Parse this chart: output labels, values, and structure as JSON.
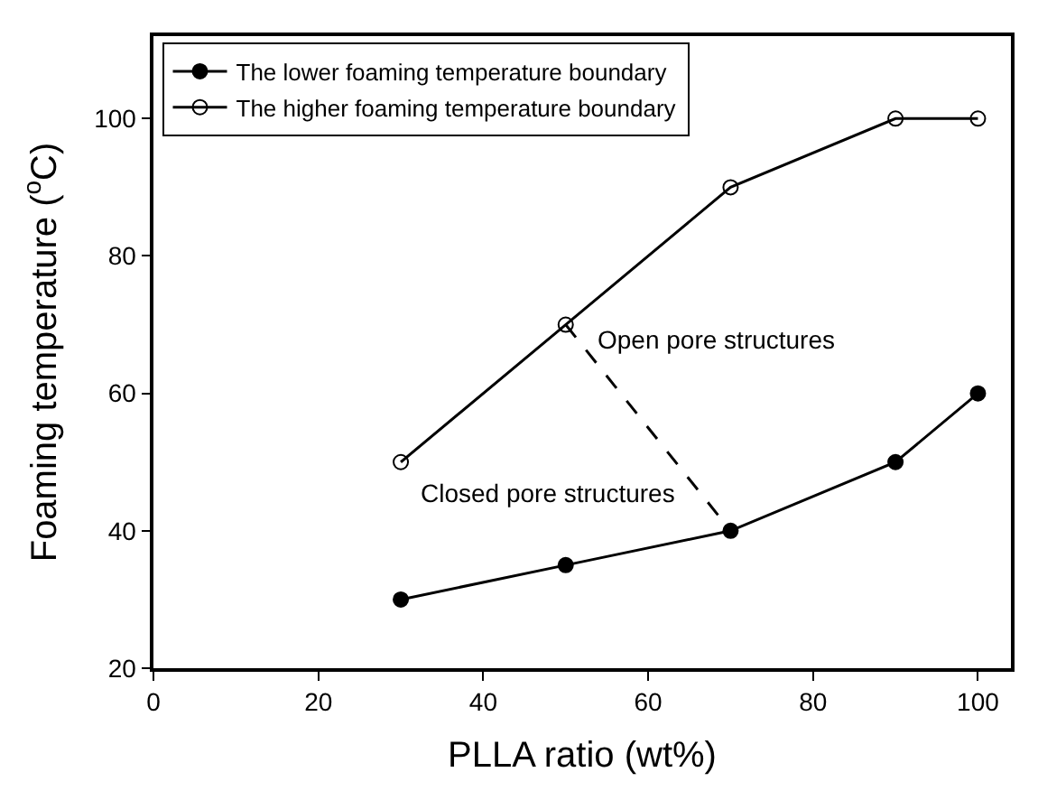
{
  "chart_data": {
    "type": "line",
    "xlabel": "PLLA ratio (wt%)",
    "ylabel": "Foaming temperature ($^{o}$C)",
    "xlim": [
      0,
      104
    ],
    "xticks": [
      0,
      20,
      40,
      60,
      80,
      100
    ],
    "ylim": [
      20,
      112
    ],
    "yticks": [
      20,
      40,
      60,
      80,
      100
    ],
    "legend": "top left",
    "line_style": "solid",
    "series": [
      {
        "name": "The lower foaming temperature boundary",
        "color": "#000000",
        "marker": "circle",
        "x": [
          30,
          50,
          70,
          90,
          100
        ],
        "values": [
          30,
          35,
          40,
          50,
          60
        ]
      },
      {
        "name": "The higher foaming temperature boundary",
        "color": "#000000",
        "marker": "circle-open",
        "x": [
          30,
          50,
          70,
          90,
          100
        ],
        "values": [
          50,
          70,
          90,
          100,
          100
        ]
      },
      {
        "color": "#000000",
        "marker": "none",
        "line_style": "dashed",
        "x": [
          50,
          70
        ],
        "values": [
          70,
          40
        ]
      }
    ],
    "annotations": [
      "Open pore structures",
      "Closed pore structures"
    ]
  }
}
